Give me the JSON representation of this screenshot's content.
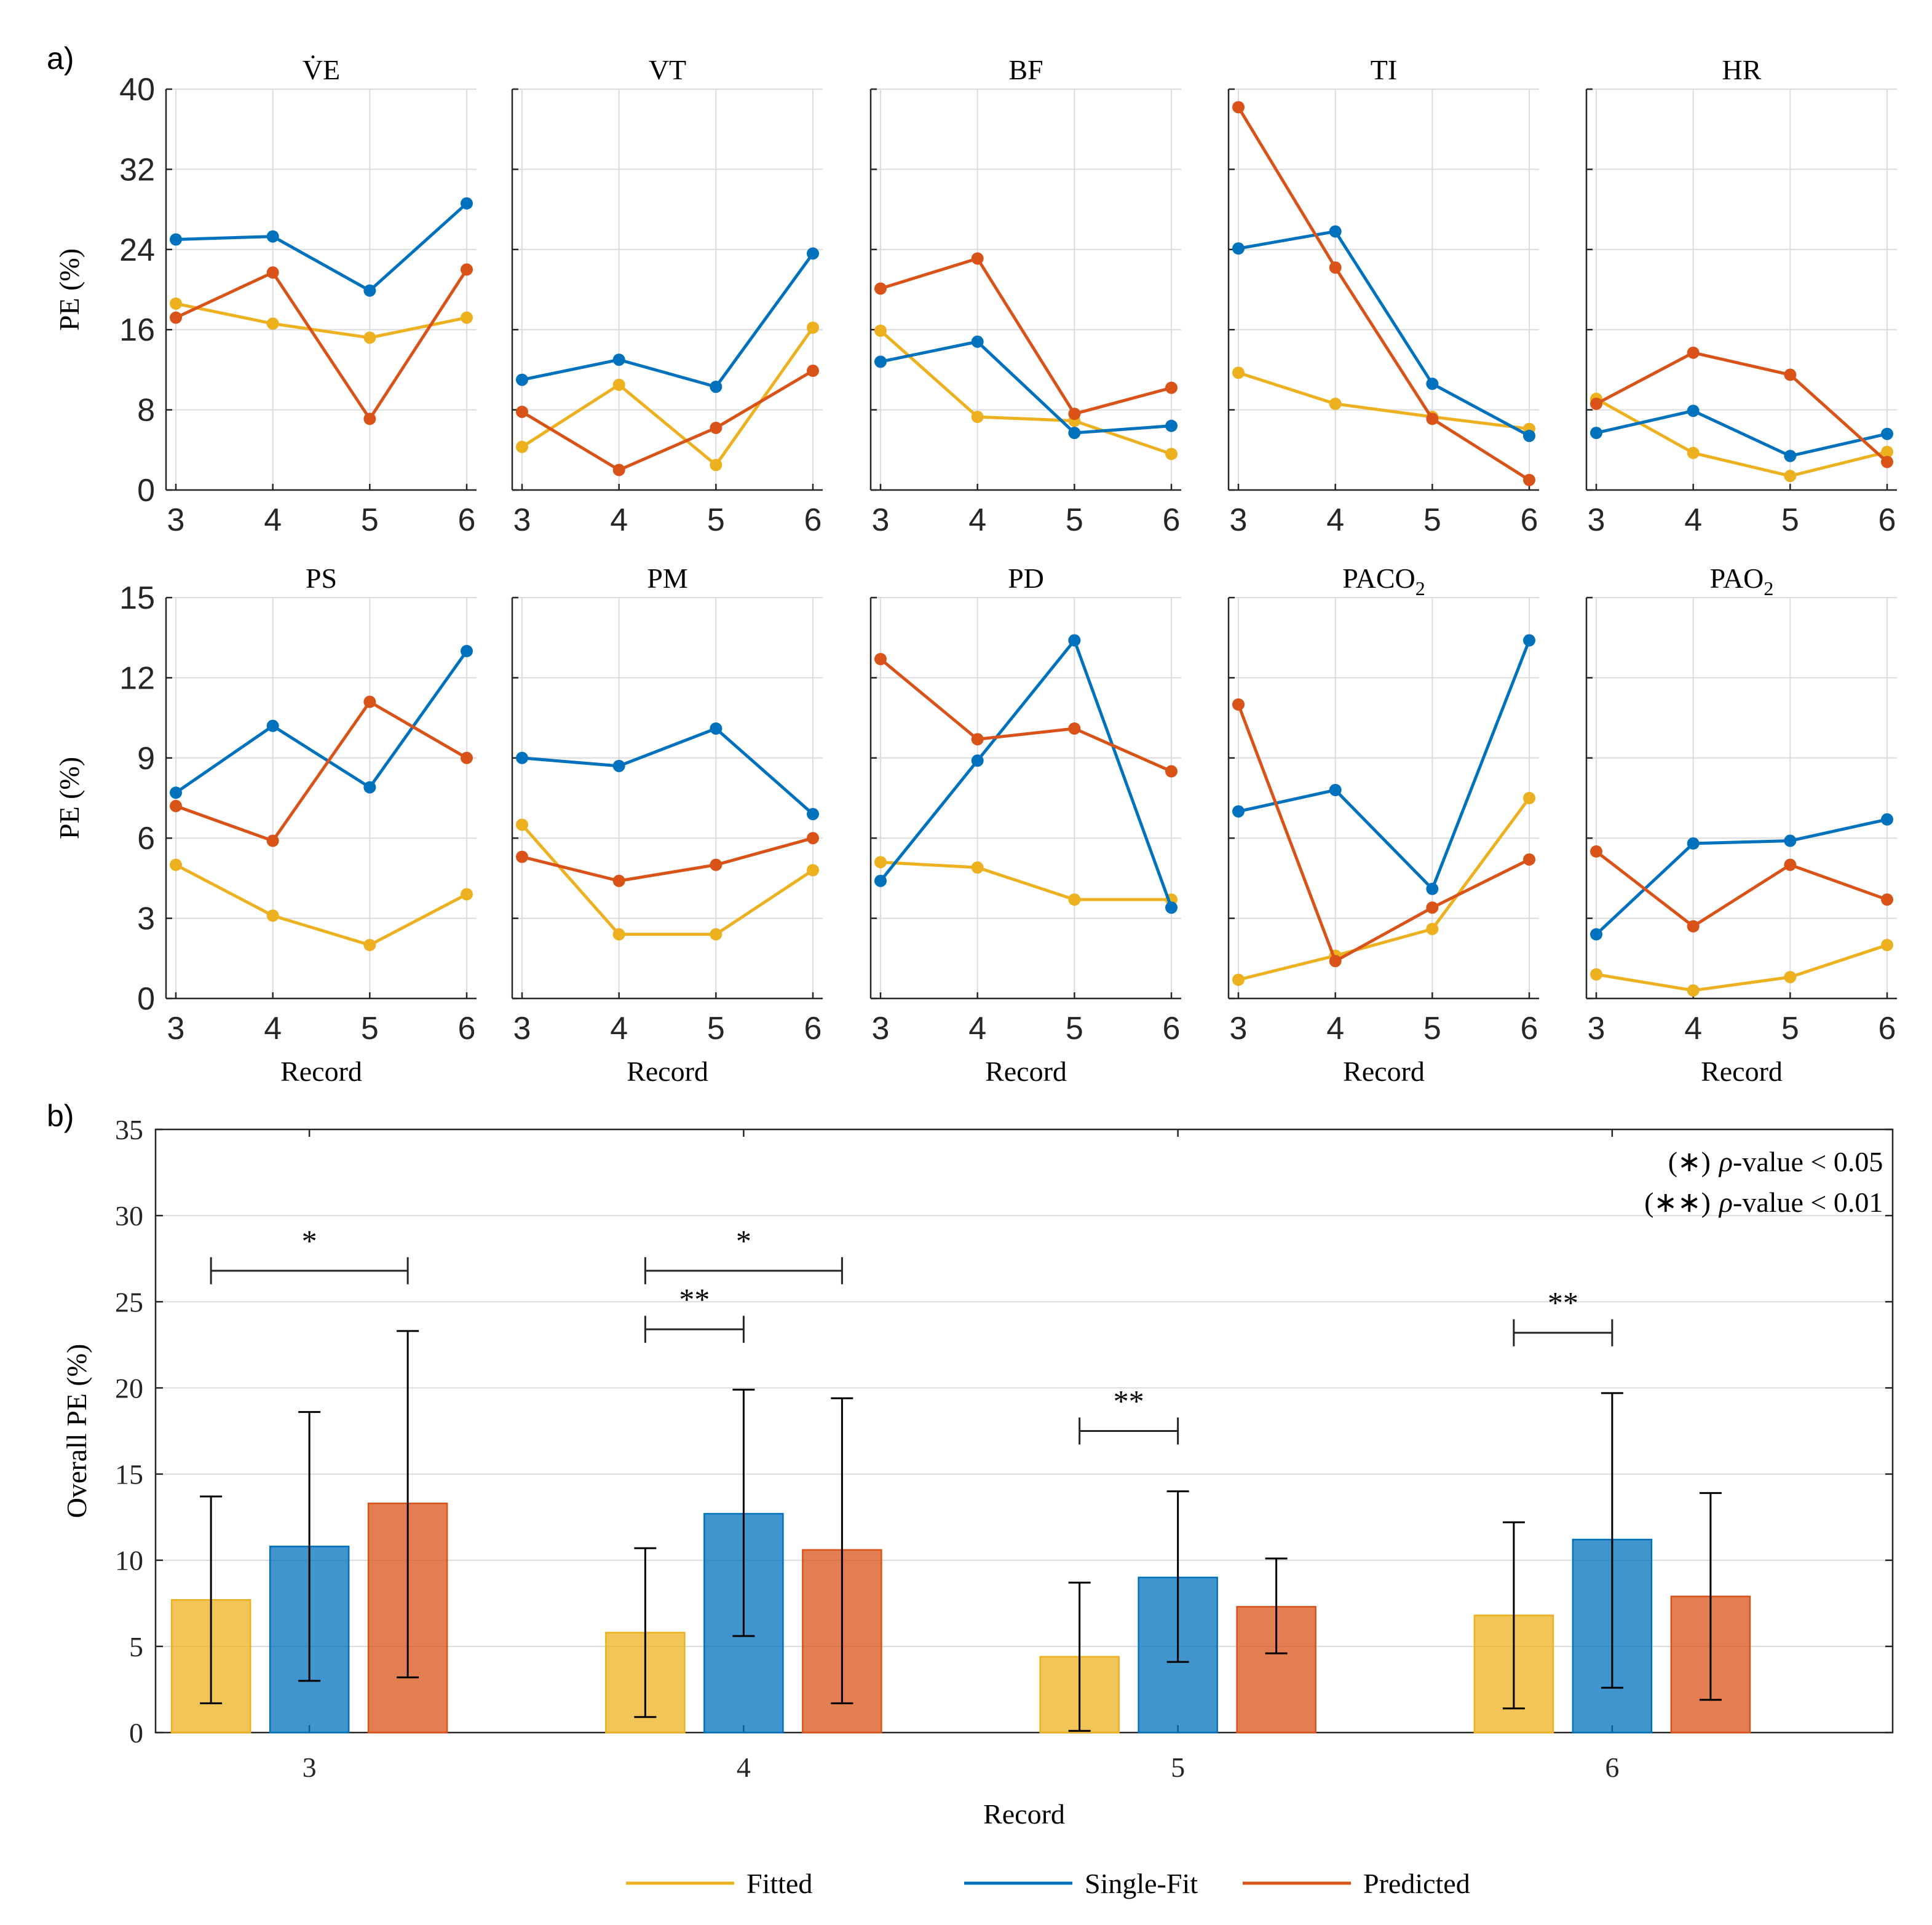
{
  "figure": {
    "panel_a_label": "a)",
    "panel_b_label": "b)",
    "colors": {
      "fitted": "#EDB120",
      "single_fit": "#0072BD",
      "predicted": "#D95319",
      "grid": "#dcdcdc",
      "axis": "#262626"
    }
  },
  "chart_data": [
    {
      "type": "line",
      "title": "V̇E",
      "xlabel": "",
      "ylabel": "PE (%)",
      "x": [
        3,
        4,
        5,
        6
      ],
      "ylim": [
        0,
        40
      ],
      "yticks": [
        0,
        8,
        16,
        24,
        32,
        40
      ],
      "grid": true,
      "series": [
        {
          "name": "Fitted",
          "values": [
            18.6,
            16.6,
            15.2,
            17.2
          ]
        },
        {
          "name": "Single-Fit",
          "values": [
            25.0,
            25.3,
            19.9,
            28.6
          ]
        },
        {
          "name": "Predicted",
          "values": [
            17.2,
            21.7,
            7.1,
            22.0
          ]
        }
      ]
    },
    {
      "type": "line",
      "title": "VT",
      "xlabel": "",
      "ylabel": "",
      "x": [
        3,
        4,
        5,
        6
      ],
      "ylim": [
        0,
        40
      ],
      "grid": true,
      "series": [
        {
          "name": "Fitted",
          "values": [
            4.3,
            10.5,
            2.5,
            16.2
          ]
        },
        {
          "name": "Single-Fit",
          "values": [
            11.0,
            13.0,
            10.3,
            23.6
          ]
        },
        {
          "name": "Predicted",
          "values": [
            7.8,
            2.0,
            6.2,
            11.9
          ]
        }
      ]
    },
    {
      "type": "line",
      "title": "BF",
      "xlabel": "",
      "ylabel": "",
      "x": [
        3,
        4,
        5,
        6
      ],
      "ylim": [
        0,
        40
      ],
      "grid": true,
      "series": [
        {
          "name": "Fitted",
          "values": [
            15.9,
            7.3,
            6.9,
            3.6
          ]
        },
        {
          "name": "Single-Fit",
          "values": [
            12.8,
            14.8,
            5.7,
            6.4
          ]
        },
        {
          "name": "Predicted",
          "values": [
            20.1,
            23.1,
            7.6,
            10.2
          ]
        }
      ]
    },
    {
      "type": "line",
      "title": "TI",
      "xlabel": "",
      "ylabel": "",
      "x": [
        3,
        4,
        5,
        6
      ],
      "ylim": [
        0,
        40
      ],
      "grid": true,
      "series": [
        {
          "name": "Fitted",
          "values": [
            11.7,
            8.6,
            7.3,
            6.1
          ]
        },
        {
          "name": "Single-Fit",
          "values": [
            24.1,
            25.8,
            10.6,
            5.4
          ]
        },
        {
          "name": "Predicted",
          "values": [
            38.2,
            22.2,
            7.1,
            1.0
          ]
        }
      ]
    },
    {
      "type": "line",
      "title": "HR",
      "xlabel": "",
      "ylabel": "",
      "x": [
        3,
        4,
        5,
        6
      ],
      "ylim": [
        0,
        40
      ],
      "grid": true,
      "series": [
        {
          "name": "Fitted",
          "values": [
            9.1,
            3.7,
            1.4,
            3.8
          ]
        },
        {
          "name": "Single-Fit",
          "values": [
            5.7,
            7.9,
            3.4,
            5.6
          ]
        },
        {
          "name": "Predicted",
          "values": [
            8.6,
            13.7,
            11.5,
            2.8
          ]
        }
      ]
    },
    {
      "type": "line",
      "title": "PS",
      "xlabel": "Record",
      "ylabel": "PE (%)",
      "x": [
        3,
        4,
        5,
        6
      ],
      "ylim": [
        0,
        15
      ],
      "yticks": [
        0,
        3,
        6,
        9,
        12,
        15
      ],
      "grid": true,
      "series": [
        {
          "name": "Fitted",
          "values": [
            5.0,
            3.1,
            2.0,
            3.9
          ]
        },
        {
          "name": "Single-Fit",
          "values": [
            7.7,
            10.2,
            7.9,
            13.0
          ]
        },
        {
          "name": "Predicted",
          "values": [
            7.2,
            5.9,
            11.1,
            9.0
          ]
        }
      ]
    },
    {
      "type": "line",
      "title": "PM",
      "xlabel": "Record",
      "ylabel": "",
      "x": [
        3,
        4,
        5,
        6
      ],
      "ylim": [
        0,
        15
      ],
      "grid": true,
      "series": [
        {
          "name": "Fitted",
          "values": [
            6.5,
            2.4,
            2.4,
            4.8
          ]
        },
        {
          "name": "Single-Fit",
          "values": [
            9.0,
            8.7,
            10.1,
            6.9
          ]
        },
        {
          "name": "Predicted",
          "values": [
            5.3,
            4.4,
            5.0,
            6.0
          ]
        }
      ]
    },
    {
      "type": "line",
      "title": "PD",
      "xlabel": "Record",
      "ylabel": "",
      "x": [
        3,
        4,
        5,
        6
      ],
      "ylim": [
        0,
        15
      ],
      "grid": true,
      "series": [
        {
          "name": "Fitted",
          "values": [
            5.1,
            4.9,
            3.7,
            3.7
          ]
        },
        {
          "name": "Single-Fit",
          "values": [
            4.4,
            8.9,
            13.4,
            3.4
          ]
        },
        {
          "name": "Predicted",
          "values": [
            12.7,
            9.7,
            10.1,
            8.5
          ]
        }
      ]
    },
    {
      "type": "line",
      "title": "PACO",
      "title_subscript": "2",
      "xlabel": "Record",
      "ylabel": "",
      "x": [
        3,
        4,
        5,
        6
      ],
      "ylim": [
        0,
        15
      ],
      "grid": true,
      "series": [
        {
          "name": "Fitted",
          "values": [
            0.7,
            1.6,
            2.6,
            7.5
          ]
        },
        {
          "name": "Single-Fit",
          "values": [
            7.0,
            7.8,
            4.1,
            13.4
          ]
        },
        {
          "name": "Predicted",
          "values": [
            11.0,
            1.4,
            3.4,
            5.2
          ]
        }
      ]
    },
    {
      "type": "line",
      "title": "PAO",
      "title_subscript": "2",
      "xlabel": "Record",
      "ylabel": "",
      "x": [
        3,
        4,
        5,
        6
      ],
      "ylim": [
        0,
        15
      ],
      "grid": true,
      "series": [
        {
          "name": "Fitted",
          "values": [
            0.9,
            0.3,
            0.8,
            2.0
          ]
        },
        {
          "name": "Single-Fit",
          "values": [
            2.4,
            5.8,
            5.9,
            6.7
          ]
        },
        {
          "name": "Predicted",
          "values": [
            5.5,
            2.7,
            5.0,
            3.7
          ]
        }
      ]
    },
    {
      "type": "bar",
      "xlabel": "Record",
      "ylabel": "Overall PE (%)",
      "categories": [
        "3",
        "4",
        "5",
        "6"
      ],
      "ylim": [
        0,
        35
      ],
      "yticks": [
        0,
        5,
        10,
        15,
        20,
        25,
        30,
        35
      ],
      "grid": true,
      "series": [
        {
          "name": "Fitted",
          "values": [
            7.7,
            5.8,
            4.4,
            6.8
          ],
          "err_low": [
            1.7,
            0.9,
            0.1,
            1.4
          ],
          "err_high": [
            13.7,
            10.7,
            8.7,
            12.2
          ]
        },
        {
          "name": "Single-Fit",
          "values": [
            10.8,
            12.7,
            9.0,
            11.2
          ],
          "err_low": [
            3.0,
            5.6,
            4.1,
            2.6
          ],
          "err_high": [
            18.6,
            19.9,
            14.0,
            19.7
          ]
        },
        {
          "name": "Predicted",
          "values": [
            13.3,
            10.6,
            7.3,
            7.9
          ],
          "err_low": [
            3.2,
            1.7,
            4.6,
            1.9
          ],
          "err_high": [
            23.3,
            19.4,
            10.1,
            13.9
          ]
        }
      ],
      "significance": [
        {
          "category": "3",
          "from": "Fitted",
          "to": "Predicted",
          "label": "*",
          "level": 26.8
        },
        {
          "category": "4",
          "from": "Fitted",
          "to": "Predicted",
          "label": "*",
          "level": 26.8
        },
        {
          "category": "4",
          "from": "Fitted",
          "to": "Single-Fit",
          "label": "**",
          "level": 23.4
        },
        {
          "category": "5",
          "from": "Fitted",
          "to": "Single-Fit",
          "label": "**",
          "level": 17.5
        },
        {
          "category": "6",
          "from": "Fitted",
          "to": "Single-Fit",
          "label": "**",
          "level": 23.2
        }
      ],
      "annotations": [
        {
          "marker": "(∗)",
          "symbol": "ρ",
          "text": "-value < 0.05"
        },
        {
          "marker": "(∗∗)",
          "symbol": "ρ",
          "text": "-value < 0.01"
        }
      ],
      "legend": {
        "placement": "bottom-center",
        "entries": [
          "Fitted",
          "Single-Fit",
          "Predicted"
        ]
      }
    }
  ]
}
